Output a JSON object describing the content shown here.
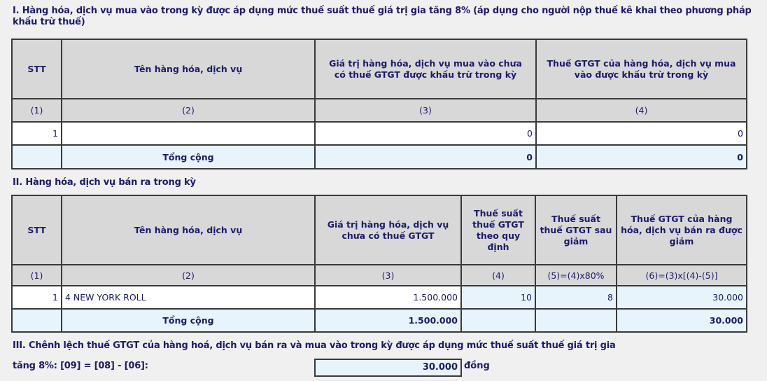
{
  "section1": {
    "title": "I. Hàng hóa, dịch vụ mua vào trong kỳ được áp dụng mức thuế suất thuế giá trị gia tăng 8% (áp dụng cho người nộp thuế kê khai theo phương pháp khấu trừ thuế)",
    "headers": [
      "STT",
      "Tên hàng hóa, dịch vụ",
      "Giá trị hàng hóa, dịch vụ mua vào chưa có thuế GTGT được khấu trừ trong kỳ",
      "Thuế GTGT của hàng hóa, dịch vụ mua vào được khấu trừ trong kỳ"
    ],
    "col_numbers": [
      "(1)",
      "(2)",
      "(3)",
      "(4)"
    ],
    "rows": [
      {
        "stt": "1",
        "name": "",
        "value": "0",
        "tax": "0"
      }
    ],
    "total": {
      "label": "Tổng cộng",
      "value": "0",
      "tax": "0"
    }
  },
  "section2": {
    "title": "II. Hàng hóa, dịch vụ bán ra trong kỳ",
    "headers": [
      "STT",
      "Tên hàng hóa, dịch vụ",
      "Giá trị hàng hóa, dịch vụ chưa có thuế GTGT",
      "Thuế suất thuế GTGT theo quy định",
      "Thuế suất thuế GTGT sau giảm",
      "Thuế GTGT của hàng hóa, dịch vụ bán ra được giảm"
    ],
    "col_numbers": [
      "(1)",
      "(2)",
      "(3)",
      "(4)",
      "(5)=(4)x80%",
      "(6)=(3)x[(4)-(5)]"
    ],
    "rows": [
      {
        "stt": "1",
        "name": "4 NEW YORK ROLL",
        "value": "1.500.000",
        "rate": "10",
        "reduced_rate": "8",
        "tax": "30.000"
      }
    ],
    "total": {
      "label": "Tổng cộng",
      "value": "1.500.000",
      "tax": "30.000"
    }
  },
  "section3": {
    "title_line1": "III. Chênh lệch thuế GTGT của hàng hoá, dịch vụ bán ra và mua vào trong kỳ được áp dụng mức thuế suất thuế giá trị gia",
    "title_line2": "tăng 8%: [09] = [08] - [06]:",
    "value": "30.000",
    "unit": "đồng"
  },
  "colors": {
    "text": "#1b1b6b",
    "header_bg": "#d8d8d8",
    "input_bg": "#e8f4fc"
  }
}
